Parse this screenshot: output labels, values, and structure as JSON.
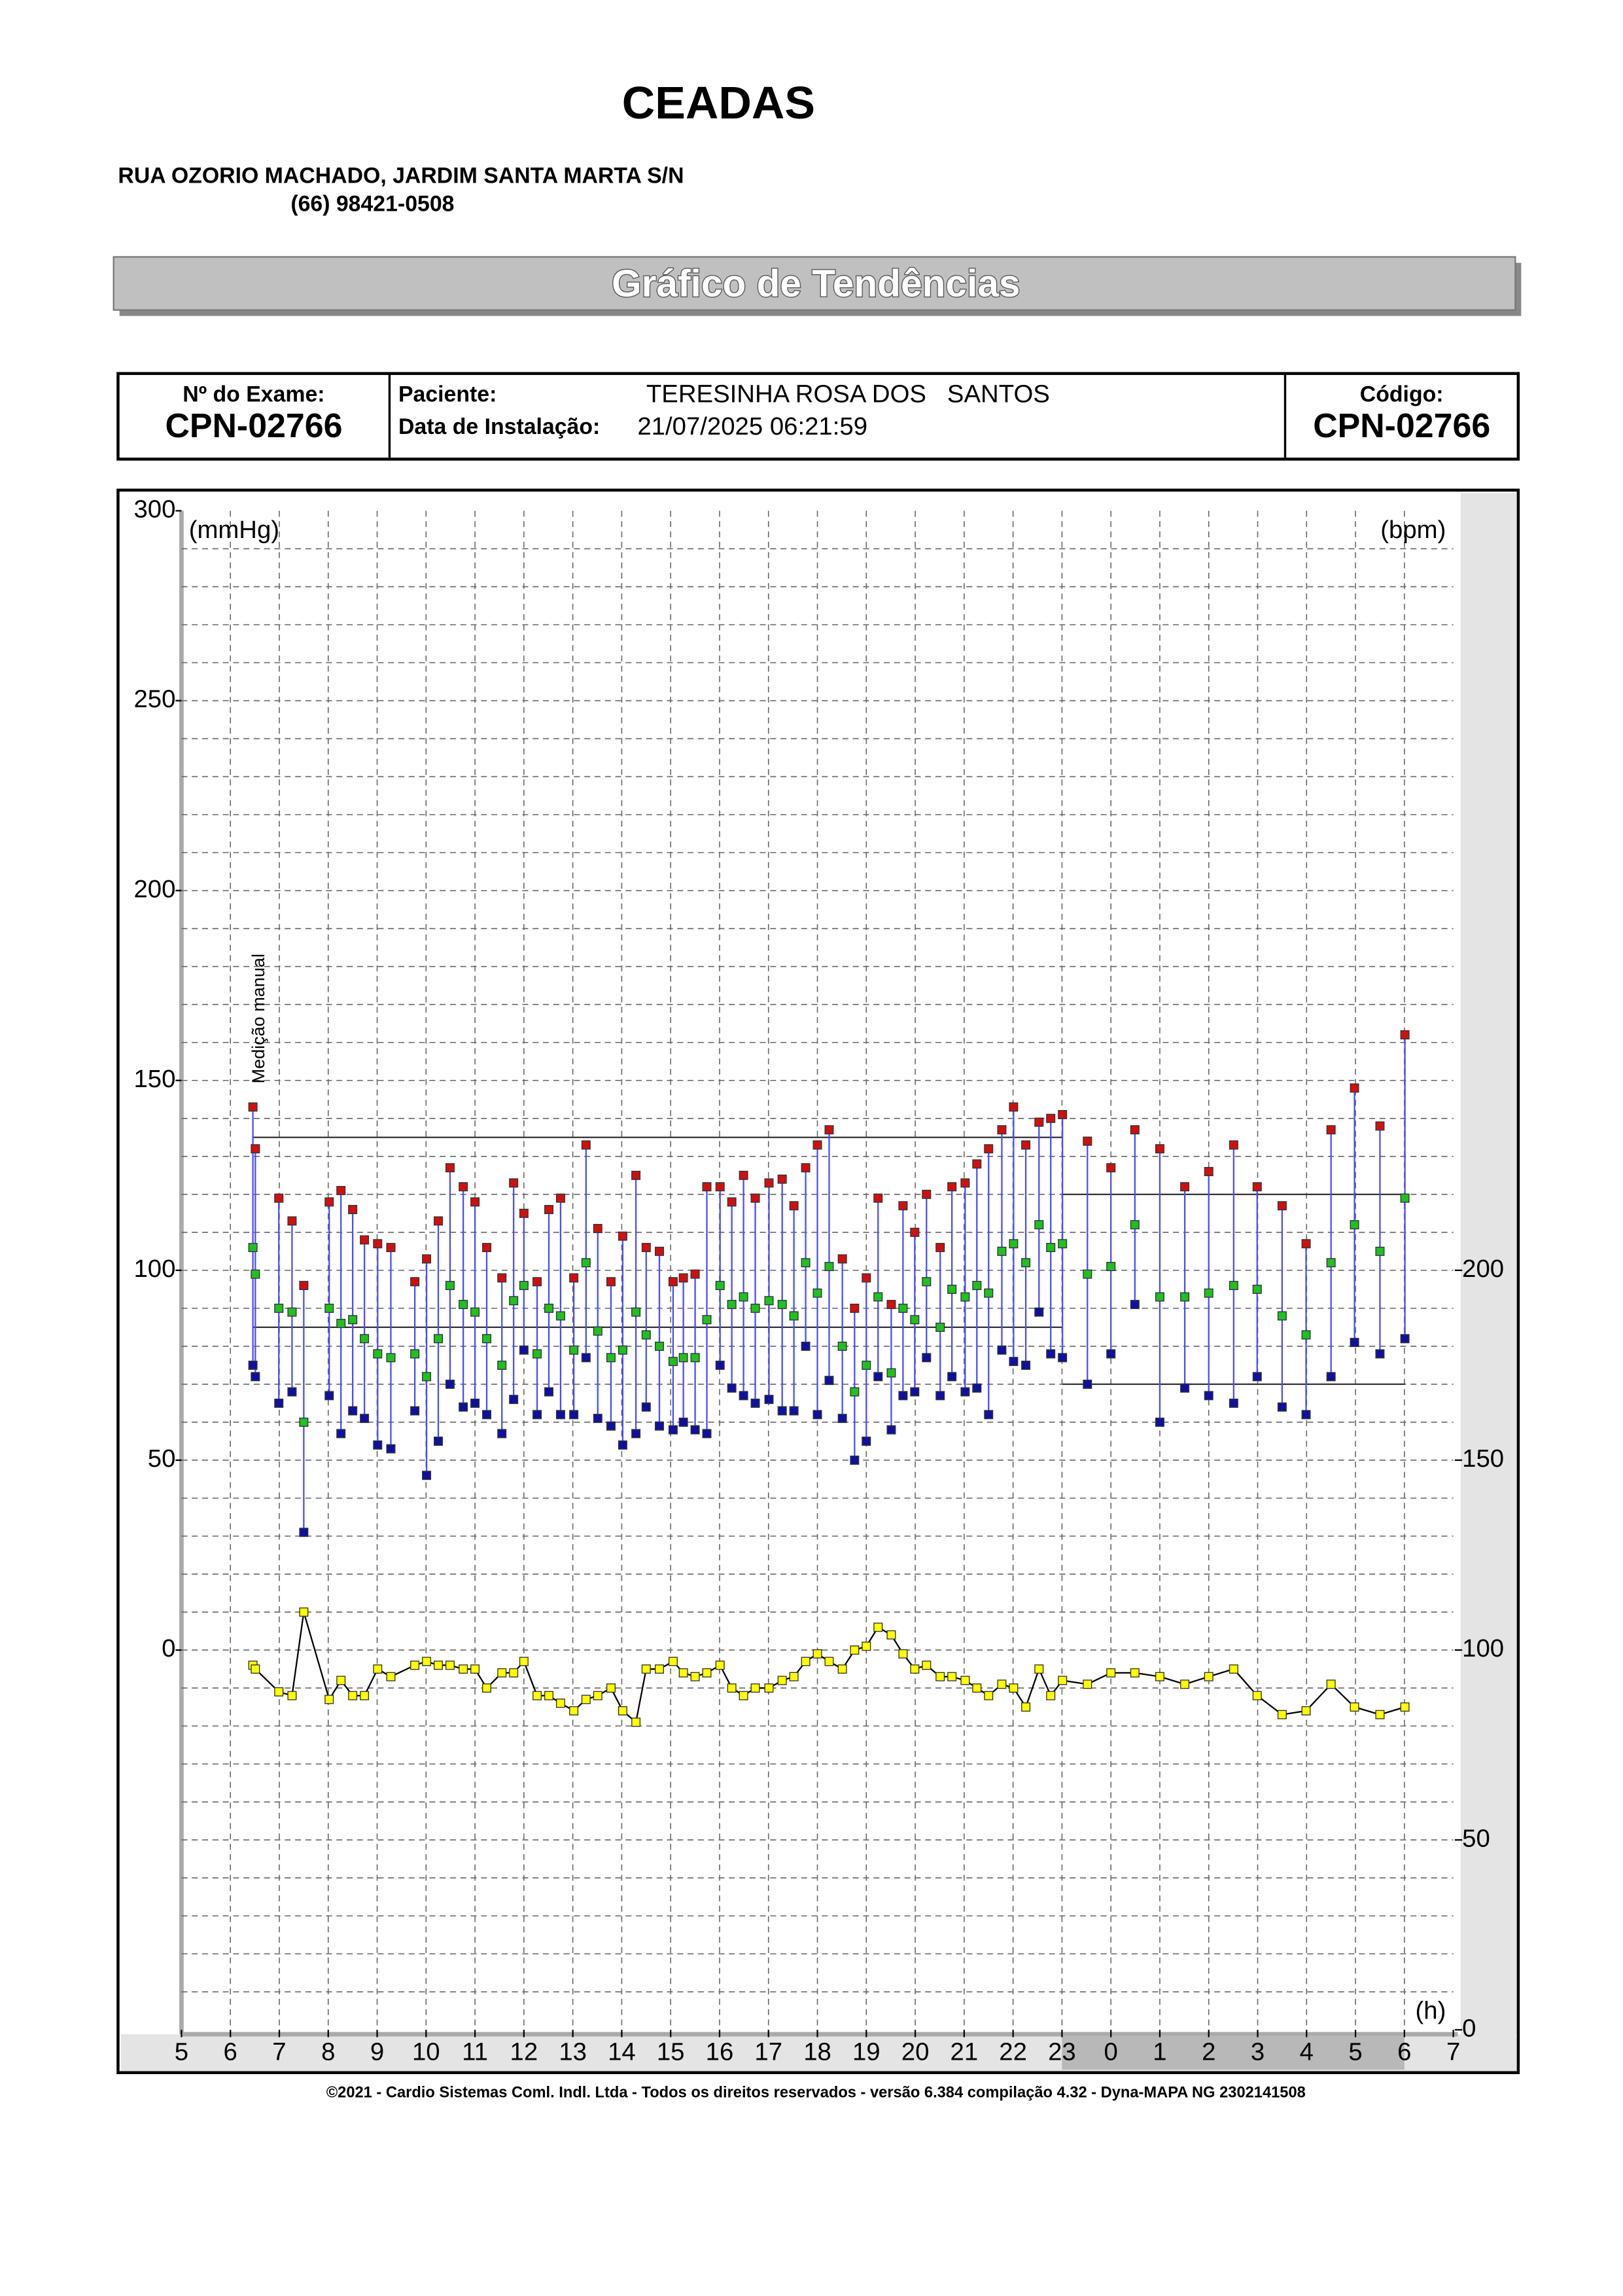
{
  "header": {
    "title": "CEADAS",
    "address": "RUA OZORIO MACHADO, JARDIM SANTA MARTA S/N",
    "phone": "(66) 98421-0508",
    "banner": "Gráfico de Tendências"
  },
  "exam_box": {
    "exam_label": "Nº do Exame:",
    "exam_number": "CPN-02766",
    "patient_label": "Paciente:",
    "patient_name": "TERESINHA ROSA DOS   SANTOS",
    "install_label": "Data de Instalação:",
    "install_date": "21/07/2025 06:21:59",
    "code_label": "Código:",
    "code": "CPN-02766"
  },
  "chart_data": {
    "type": "bp-trend",
    "y_label": "(mmHg)",
    "y2_label": "(bpm)",
    "x_label": "(h)",
    "annotation": "Medição manual",
    "grid": true,
    "xlim": [
      5,
      31
    ],
    "xticks": [
      5,
      6,
      7,
      8,
      9,
      10,
      11,
      12,
      13,
      14,
      15,
      16,
      17,
      18,
      19,
      20,
      21,
      22,
      23,
      {
        "value": 24,
        "label": "0"
      },
      {
        "value": 25,
        "label": "1"
      },
      {
        "value": 26,
        "label": "2"
      },
      {
        "value": 27,
        "label": "3"
      },
      {
        "value": 28,
        "label": "4"
      },
      {
        "value": 29,
        "label": "5"
      },
      {
        "value": 30,
        "label": "6"
      },
      {
        "value": 31,
        "label": "7"
      }
    ],
    "ylim": [
      -100,
      300
    ],
    "yticks": [
      0,
      50,
      100,
      150,
      200,
      250,
      300
    ],
    "ygrid": [
      -90,
      -80,
      -70,
      -60,
      -50,
      -40,
      -30,
      -20,
      -10,
      0,
      10,
      20,
      30,
      40,
      50,
      60,
      70,
      80,
      90,
      100,
      110,
      120,
      130,
      140,
      150,
      160,
      170,
      180,
      190,
      200,
      210,
      220,
      230,
      240,
      250,
      260,
      270,
      280,
      290
    ],
    "y2lim": [
      0,
      400
    ],
    "y2ticks": [
      0,
      50,
      100,
      150,
      200
    ],
    "night_period": [
      23,
      30
    ],
    "limit_lines": [
      {
        "x": [
          6.46,
          23.01
        ],
        "values": [
          135,
          85
        ]
      },
      {
        "x": [
          23.01,
          30.01
        ],
        "values": [
          120,
          70
        ]
      }
    ],
    "x": [
      6.46,
      6.51,
      6.99,
      7.26,
      7.5,
      8.02,
      8.26,
      8.5,
      8.74,
      9.01,
      9.28,
      9.77,
      10.01,
      10.25,
      10.49,
      10.76,
      11.0,
      11.24,
      11.55,
      11.79,
      12.0,
      12.27,
      12.51,
      12.75,
      13.02,
      13.27,
      13.51,
      13.78,
      14.02,
      14.29,
      14.5,
      14.77,
      15.05,
      15.26,
      15.5,
      15.74,
      16.01,
      16.25,
      16.49,
      16.73,
      17.01,
      17.28,
      17.52,
      17.76,
      18.0,
      18.24,
      18.51,
      18.76,
      19.0,
      19.24,
      19.51,
      19.75,
      19.99,
      20.23,
      20.51,
      20.75,
      21.02,
      21.26,
      21.5,
      21.77,
      22.01,
      22.26,
      22.53,
      22.77,
      23.01,
      23.52,
      24.0,
      24.49,
      25.0,
      25.51,
      26.0,
      26.51,
      26.99,
      27.5,
      27.99,
      28.5,
      28.98,
      29.5,
      30.01
    ],
    "series": [
      {
        "color": "#d01010",
        "values": [
          143,
          132,
          119,
          113,
          96,
          118,
          121,
          116,
          108,
          107,
          106,
          97,
          103,
          113,
          127,
          122,
          118,
          106,
          98,
          123,
          115,
          97,
          116,
          119,
          98,
          133,
          111,
          97,
          109,
          125,
          106,
          105,
          97,
          98,
          99,
          122,
          122,
          118,
          125,
          119,
          123,
          124,
          117,
          127,
          133,
          137,
          103,
          90,
          98,
          119,
          91,
          117,
          110,
          120,
          106,
          122,
          123,
          128,
          132,
          137,
          143,
          133,
          139,
          140,
          141,
          134,
          127,
          137,
          132,
          122,
          126,
          133,
          122,
          117,
          107,
          137,
          148,
          138,
          162
        ]
      },
      {
        "color": "#20c020",
        "values": [
          106,
          99,
          90,
          89,
          60,
          90,
          86,
          87,
          82,
          78,
          77,
          78,
          72,
          82,
          96,
          91,
          89,
          82,
          75,
          92,
          96,
          78,
          90,
          88,
          79,
          102,
          84,
          77,
          79,
          89,
          83,
          80,
          76,
          77,
          77,
          87,
          96,
          91,
          93,
          90,
          92,
          91,
          88,
          102,
          94,
          101,
          80,
          68,
          75,
          93,
          73,
          90,
          87,
          97,
          85,
          95,
          93,
          96,
          94,
          105,
          107,
          102,
          112,
          106,
          107,
          99,
          101,
          112,
          93,
          93,
          94,
          96,
          95,
          88,
          83,
          102,
          112,
          105,
          119
        ]
      },
      {
        "color": "#1010a0",
        "values": [
          75,
          72,
          65,
          68,
          31,
          67,
          57,
          63,
          61,
          54,
          53,
          63,
          46,
          55,
          70,
          64,
          65,
          62,
          57,
          66,
          79,
          62,
          68,
          62,
          62,
          77,
          61,
          59,
          54,
          57,
          64,
          59,
          58,
          60,
          58,
          57,
          75,
          69,
          67,
          65,
          66,
          63,
          63,
          80,
          62,
          71,
          61,
          50,
          55,
          72,
          58,
          67,
          68,
          77,
          67,
          72,
          68,
          69,
          62,
          79,
          76,
          75,
          89,
          78,
          77,
          70,
          78,
          91,
          60,
          69,
          67,
          65,
          72,
          64,
          62,
          72,
          81,
          78,
          82
        ]
      },
      {
        "color": "#ffff00",
        "axis": "y2",
        "values": [
          96,
          95,
          89,
          88,
          110,
          87,
          92,
          88,
          88,
          95,
          93,
          96,
          97,
          96,
          96,
          95,
          95,
          90,
          94,
          94,
          97,
          88,
          88,
          86,
          84,
          87,
          88,
          90,
          84,
          81,
          95,
          95,
          97,
          94,
          93,
          94,
          96,
          90,
          88,
          90,
          90,
          92,
          93,
          97,
          99,
          97,
          95,
          100,
          101,
          106,
          104,
          99,
          95,
          96,
          93,
          93,
          92,
          90,
          88,
          91,
          90,
          85,
          95,
          88,
          92,
          91,
          94,
          94,
          93,
          91,
          93,
          95,
          88,
          83,
          84,
          91,
          85,
          83,
          85
        ]
      }
    ]
  },
  "footer": "©2021 - Cardio Sistemas Coml. Indl. Ltda - Todos os direitos reservados - versão 6.384 compilação 4.32 - Dyna-MAPA NG 2302141508"
}
